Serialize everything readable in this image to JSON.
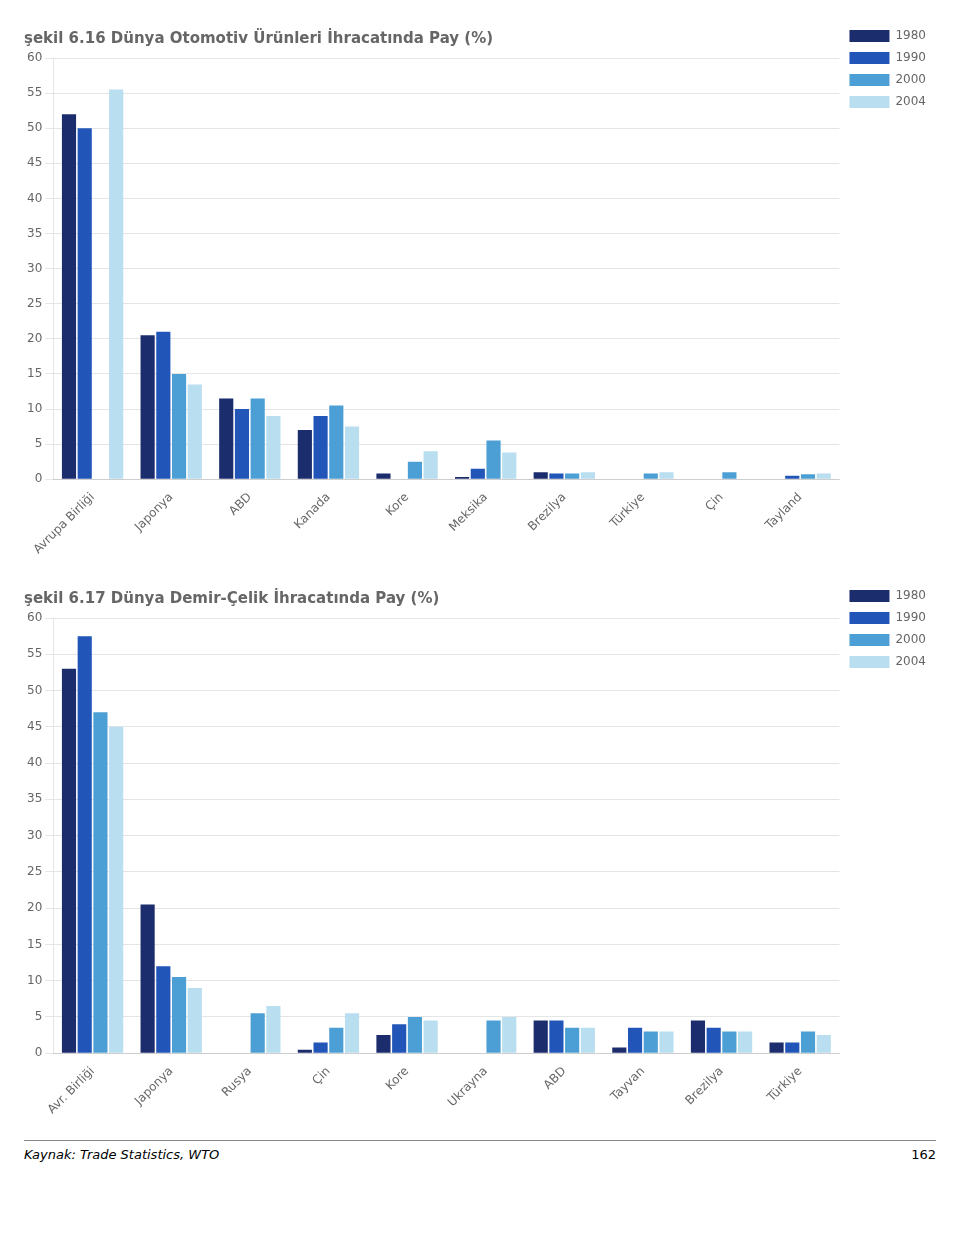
{
  "chart_data": [
    {
      "type": "bar",
      "title": "şekil 6.16 Dünya Otomotiv Ürünleri İhracatında Pay (%)",
      "categories": [
        "Avrupa Birliği",
        "Japonya",
        "ABD",
        "Kanada",
        "Kore",
        "Meksika",
        "Brezilya",
        "Türkiye",
        "Çin",
        "Tayland"
      ],
      "series": [
        {
          "name": "1980",
          "color": "#1C2D6E",
          "values": [
            52,
            20.5,
            11.5,
            7,
            0.8,
            0.3,
            1.0,
            0,
            0,
            0
          ]
        },
        {
          "name": "1990",
          "color": "#2255B8",
          "values": [
            50,
            21,
            10,
            9,
            0,
            1.5,
            0.8,
            0,
            0,
            0.5
          ]
        },
        {
          "name": "2000",
          "color": "#4C9FD4",
          "values": [
            0,
            15,
            11.5,
            10.5,
            2.5,
            5.5,
            0.8,
            0.8,
            1.0,
            0.7
          ]
        },
        {
          "name": "2004",
          "color": "#B8DEF0",
          "values": [
            55.5,
            13.5,
            9,
            7.5,
            4,
            3.8,
            1.0,
            1.0,
            0,
            0.8
          ]
        }
      ],
      "ylim": [
        0,
        60
      ],
      "yticks": [
        0,
        5,
        10,
        15,
        20,
        25,
        30,
        35,
        40,
        45,
        50,
        55,
        60
      ],
      "grid": true,
      "legend": "right"
    },
    {
      "type": "bar",
      "title": "şekil 6.17 Dünya Demir-Çelik İhracatında Pay (%)",
      "categories": [
        "Avr. Birliği",
        "Japonya",
        "Rusya",
        "Çin",
        "Kore",
        "Ukrayna",
        "ABD",
        "Tayvan",
        "Brezilya",
        "Türkiye"
      ],
      "series": [
        {
          "name": "1980",
          "color": "#1C2D6E",
          "values": [
            53,
            20.5,
            0,
            0.5,
            2.5,
            0,
            4.5,
            0.8,
            4.5,
            1.5
          ]
        },
        {
          "name": "1990",
          "color": "#2255B8",
          "values": [
            57.5,
            12,
            0,
            1.5,
            4,
            0,
            4.5,
            3.5,
            3.5,
            1.5
          ]
        },
        {
          "name": "2000",
          "color": "#4C9FD4",
          "values": [
            47,
            10.5,
            5.5,
            3.5,
            5,
            4.5,
            3.5,
            3,
            3,
            3
          ]
        },
        {
          "name": "2004",
          "color": "#B8DEF0",
          "values": [
            45,
            9,
            6.5,
            5.5,
            4.5,
            5,
            3.5,
            3,
            3,
            2.5
          ]
        }
      ],
      "ylim": [
        0,
        60
      ],
      "yticks": [
        0,
        5,
        10,
        15,
        20,
        25,
        30,
        35,
        40,
        45,
        50,
        55,
        60
      ],
      "grid": true,
      "legend": "right",
      "annotations": [
        "Kaynak: Trade Statistics, WTO",
        "162"
      ]
    }
  ]
}
